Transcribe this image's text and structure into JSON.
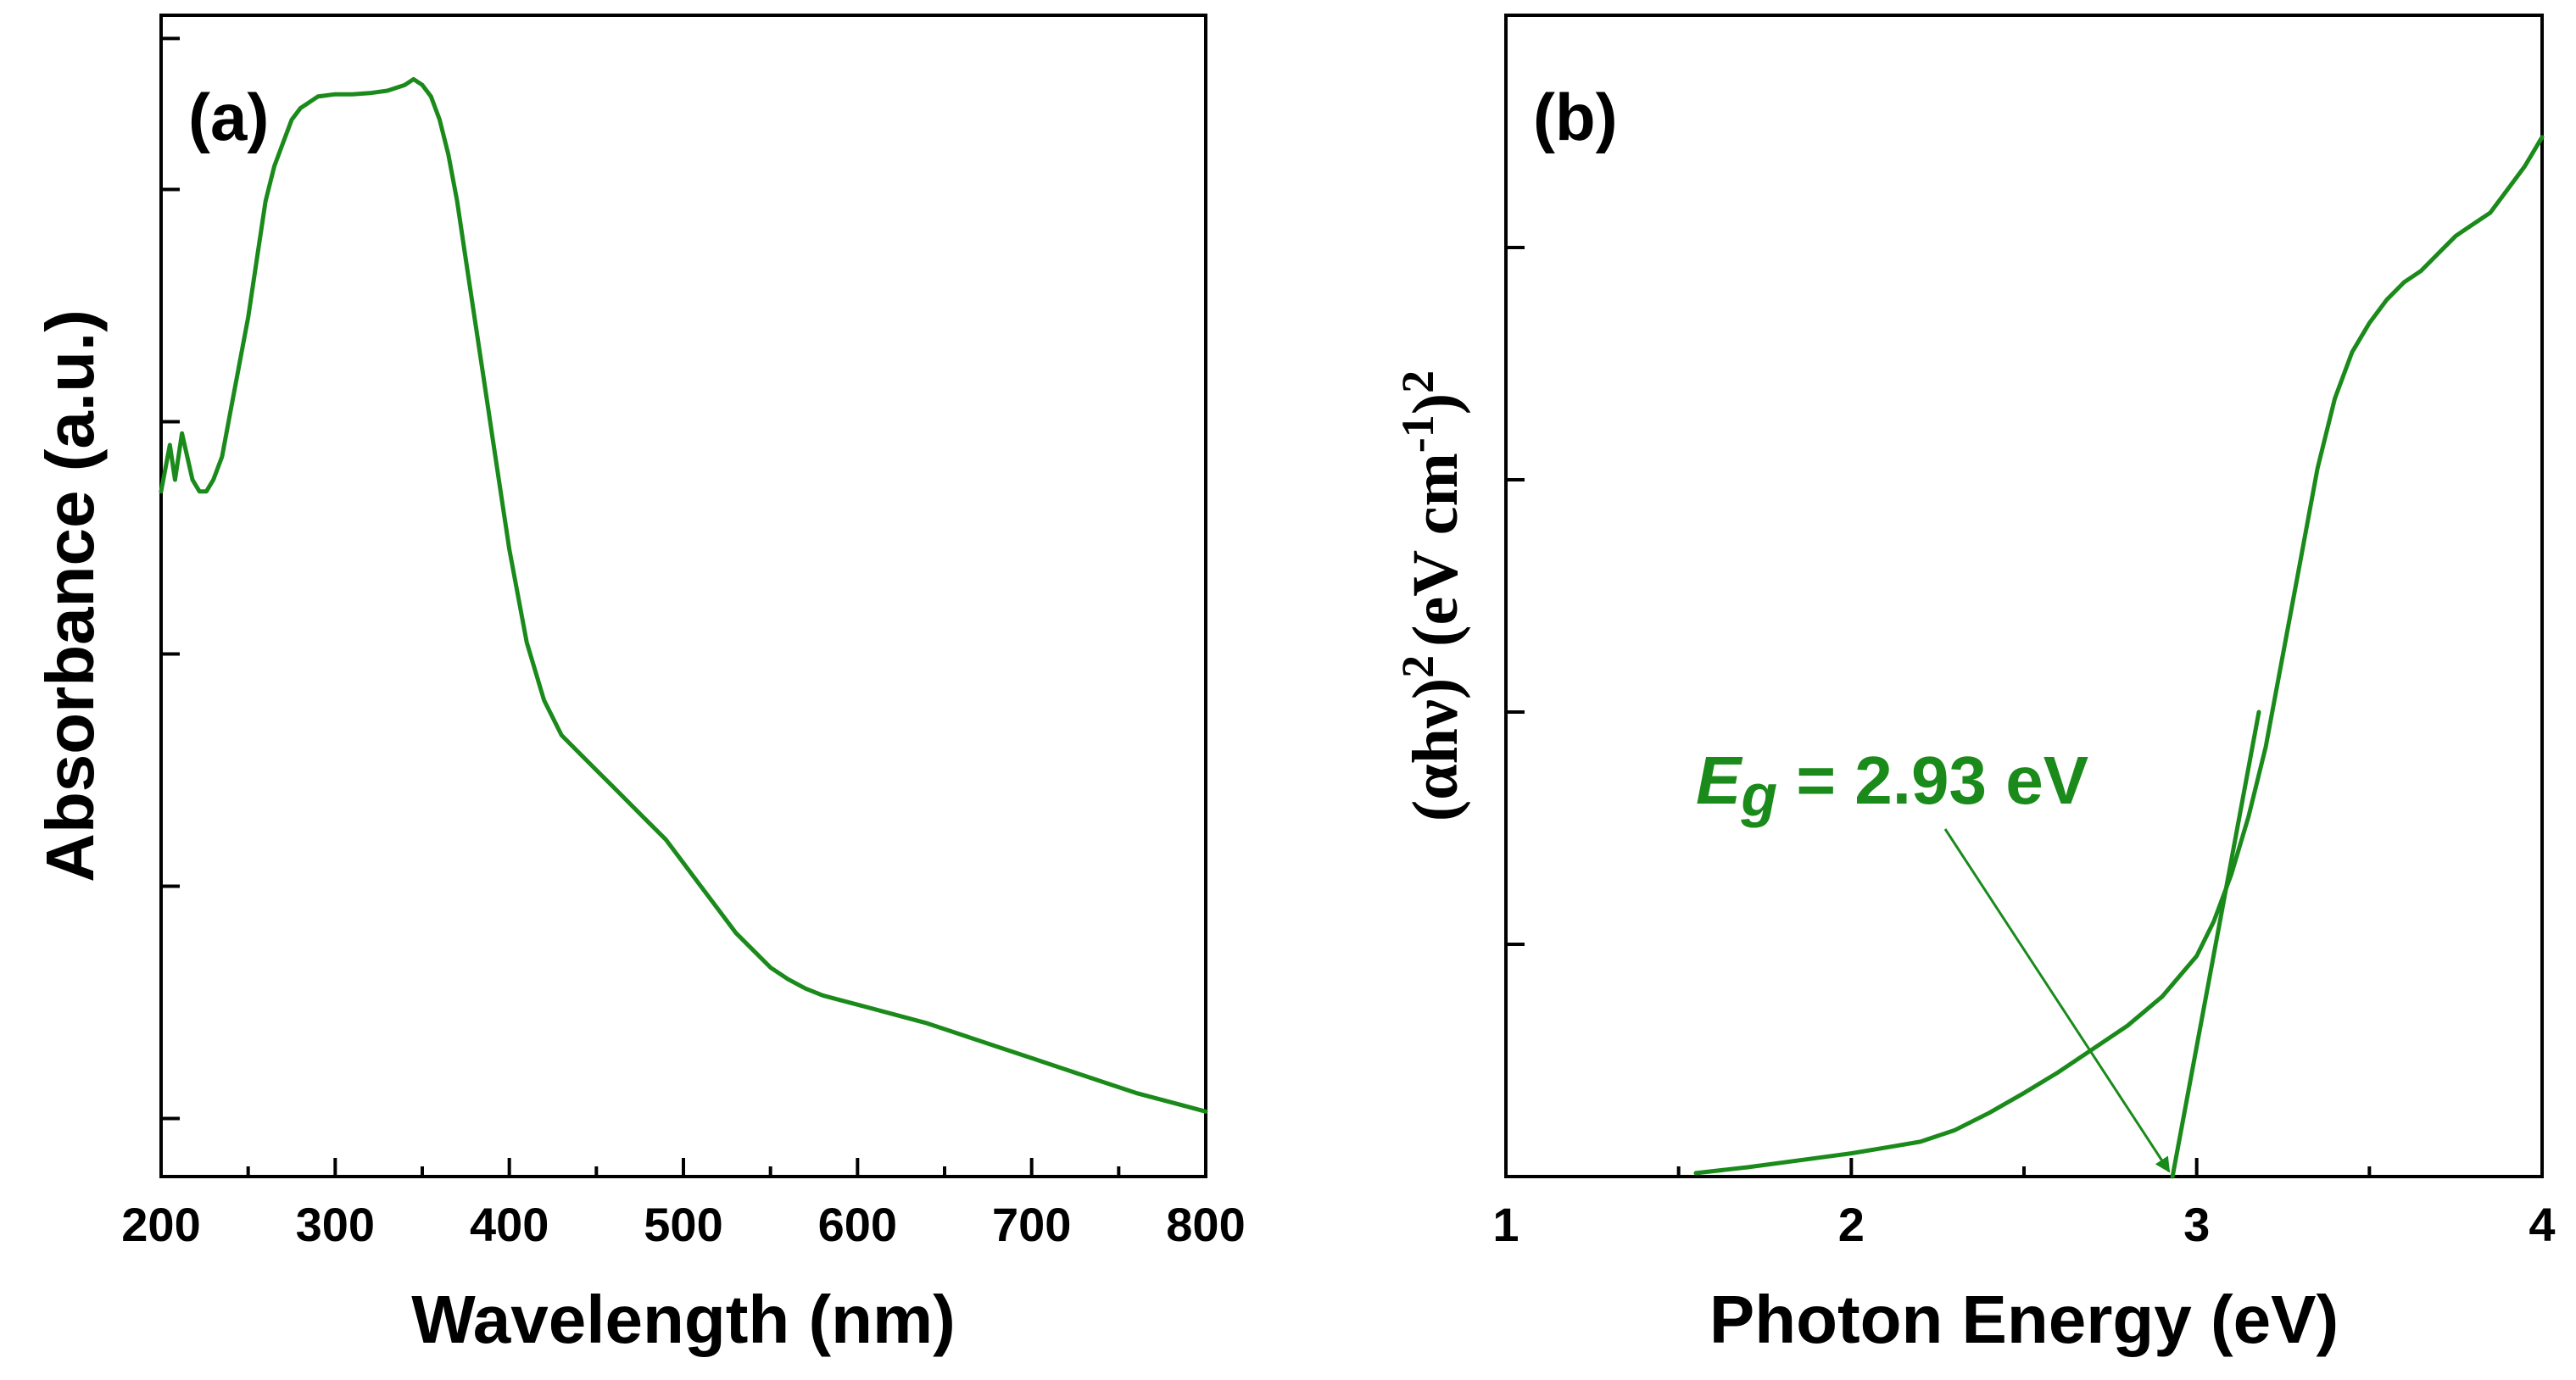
{
  "colors": {
    "series": "#1a8a1a",
    "axis": "#000000"
  },
  "chart_data": [
    {
      "panel_label": "(a)",
      "type": "line",
      "xlabel": "Wavelength (nm)",
      "ylabel": "Absorbance (a.u.)",
      "xlim": [
        200,
        800
      ],
      "ylim": [
        0,
        1
      ],
      "xticks": [
        "200",
        "300",
        "400",
        "500",
        "600",
        "700",
        "800"
      ],
      "yticks_unlabeled": [
        0.05,
        0.25,
        0.45,
        0.65,
        0.85,
        0.98
      ],
      "series": [
        {
          "x": [
            200,
            205,
            208,
            212,
            215,
            218,
            222,
            226,
            230,
            235,
            240,
            245,
            250,
            255,
            260,
            265,
            270,
            275,
            280,
            285,
            290,
            300,
            310,
            320,
            330,
            340,
            345,
            350,
            355,
            360,
            365,
            370,
            375,
            380,
            385,
            390,
            395,
            400,
            410,
            420,
            430,
            440,
            450,
            460,
            470,
            480,
            490,
            500,
            510,
            520,
            530,
            540,
            550,
            560,
            570,
            580,
            590,
            600,
            620,
            640,
            660,
            680,
            700,
            720,
            740,
            760,
            780,
            790,
            800
          ],
          "y": [
            0.59,
            0.63,
            0.6,
            0.64,
            0.62,
            0.6,
            0.59,
            0.59,
            0.6,
            0.62,
            0.66,
            0.7,
            0.74,
            0.79,
            0.84,
            0.87,
            0.89,
            0.91,
            0.92,
            0.925,
            0.93,
            0.932,
            0.932,
            0.933,
            0.935,
            0.94,
            0.945,
            0.94,
            0.93,
            0.91,
            0.88,
            0.84,
            0.79,
            0.74,
            0.69,
            0.64,
            0.59,
            0.54,
            0.46,
            0.41,
            0.38,
            0.365,
            0.35,
            0.335,
            0.32,
            0.305,
            0.29,
            0.27,
            0.25,
            0.23,
            0.21,
            0.195,
            0.18,
            0.17,
            0.162,
            0.156,
            0.152,
            0.148,
            0.14,
            0.132,
            0.122,
            0.112,
            0.102,
            0.092,
            0.082,
            0.072,
            0.064,
            0.06,
            0.056
          ]
        }
      ]
    },
    {
      "panel_label": "(b)",
      "type": "line",
      "xlabel": "Photon Energy (eV)",
      "ylabel": "(αhν)² (eV cm⁻¹)²",
      "ylabel_main": "(αhν)",
      "ylabel_sup1": "2",
      "ylabel_units": "(eV cm",
      "ylabel_sup2": "-1",
      "ylabel_close": ")",
      "ylabel_sup3": "2",
      "xlim": [
        1,
        4
      ],
      "ylim": [
        0,
        1
      ],
      "xticks": [
        "1",
        "2",
        "3",
        "4"
      ],
      "yticks_unlabeled": [
        0.2,
        0.4,
        0.6,
        0.8,
        1.0
      ],
      "series": [
        {
          "x": [
            1.55,
            1.7,
            1.85,
            2.0,
            2.1,
            2.2,
            2.3,
            2.4,
            2.5,
            2.6,
            2.7,
            2.8,
            2.9,
            3.0,
            3.05,
            3.1,
            3.15,
            3.2,
            3.25,
            3.3,
            3.35,
            3.4,
            3.45,
            3.5,
            3.55,
            3.6,
            3.65,
            3.7,
            3.75,
            3.8,
            3.85,
            3.9,
            3.95,
            4.0
          ],
          "y": [
            0.003,
            0.008,
            0.014,
            0.02,
            0.025,
            0.03,
            0.04,
            0.055,
            0.072,
            0.09,
            0.11,
            0.13,
            0.155,
            0.19,
            0.22,
            0.26,
            0.31,
            0.37,
            0.45,
            0.53,
            0.61,
            0.67,
            0.71,
            0.735,
            0.755,
            0.77,
            0.78,
            0.795,
            0.81,
            0.82,
            0.83,
            0.85,
            0.87,
            0.895
          ]
        }
      ],
      "tangent": {
        "x": [
          2.93,
          3.18
        ],
        "y": [
          0.0,
          0.4
        ]
      },
      "annotation": {
        "prefix": "E",
        "subscript": "g",
        "text": " = 2.93 eV",
        "x": 2.93,
        "y": 0.0
      }
    }
  ]
}
